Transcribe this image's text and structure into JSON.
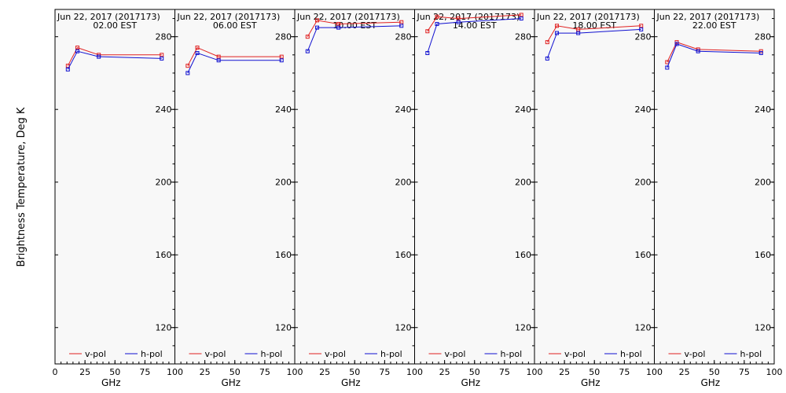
{
  "figure": {
    "ylabel": "Brightness Temperature, Deg K",
    "background": "#f8f8f8",
    "vpol_color": "#e02020",
    "hpol_color": "#1010d0"
  },
  "chart_data": [
    {
      "type": "line",
      "title_date": "Jun 22, 2017 (2017173)",
      "title_time": "02.00 EST",
      "xlabel": "GHz",
      "xlim": [
        0,
        100
      ],
      "ylim": [
        100,
        295
      ],
      "x_ticks": [
        "0",
        "25",
        "50",
        "75",
        "100"
      ],
      "y_ticks": [
        "120",
        "160",
        "200",
        "240",
        "280"
      ],
      "x": [
        10.7,
        18.7,
        36.5,
        89
      ],
      "series": [
        {
          "name": "v-pol",
          "values": [
            264,
            274,
            270,
            270
          ]
        },
        {
          "name": "h-pol",
          "values": [
            262,
            272,
            269,
            268
          ]
        }
      ]
    },
    {
      "type": "line",
      "title_date": "Jun 22, 2017 (2017173)",
      "title_time": "06.00 EST",
      "xlabel": "GHz",
      "xlim": [
        0,
        100
      ],
      "ylim": [
        100,
        295
      ],
      "x_ticks": [
        "0",
        "25",
        "50",
        "75",
        "100"
      ],
      "y_ticks": [
        "120",
        "160",
        "200",
        "240",
        "280"
      ],
      "x": [
        10.7,
        18.7,
        36.5,
        89
      ],
      "series": [
        {
          "name": "v-pol",
          "values": [
            264,
            274,
            269,
            269
          ]
        },
        {
          "name": "h-pol",
          "values": [
            260,
            271,
            267,
            267
          ]
        }
      ]
    },
    {
      "type": "line",
      "title_date": "Jun 22, 2017 (2017173)",
      "title_time": "10.00 EST",
      "xlabel": "GHz",
      "xlim": [
        0,
        100
      ],
      "ylim": [
        100,
        295
      ],
      "x_ticks": [
        "0",
        "25",
        "50",
        "75",
        "100"
      ],
      "y_ticks": [
        "120",
        "160",
        "200",
        "240",
        "280"
      ],
      "x": [
        10.7,
        18.7,
        36.5,
        89
      ],
      "series": [
        {
          "name": "v-pol",
          "values": [
            280,
            289,
            287,
            288
          ]
        },
        {
          "name": "h-pol",
          "values": [
            272,
            285,
            285,
            286
          ]
        }
      ]
    },
    {
      "type": "line",
      "title_date": "Jun 22, 2017 (2017173)",
      "title_time": "14.00 EST",
      "xlabel": "GHz",
      "xlim": [
        0,
        100
      ],
      "ylim": [
        100,
        295
      ],
      "x_ticks": [
        "0",
        "25",
        "50",
        "75",
        "100"
      ],
      "y_ticks": [
        "120",
        "160",
        "200",
        "240",
        "280"
      ],
      "x": [
        10.7,
        18.7,
        36.5,
        89
      ],
      "series": [
        {
          "name": "v-pol",
          "values": [
            283,
            291,
            290,
            292
          ]
        },
        {
          "name": "h-pol",
          "values": [
            271,
            287,
            288,
            290
          ]
        }
      ]
    },
    {
      "type": "line",
      "title_date": "Jun 22, 2017 (2017173)",
      "title_time": "18.00 EST",
      "xlabel": "GHz",
      "xlim": [
        0,
        100
      ],
      "ylim": [
        100,
        295
      ],
      "x_ticks": [
        "0",
        "25",
        "50",
        "75",
        "100"
      ],
      "y_ticks": [
        "120",
        "160",
        "200",
        "240",
        "280"
      ],
      "x": [
        10.7,
        18.7,
        36.5,
        89
      ],
      "series": [
        {
          "name": "v-pol",
          "values": [
            277,
            286,
            284,
            286
          ]
        },
        {
          "name": "h-pol",
          "values": [
            268,
            282,
            282,
            284
          ]
        }
      ]
    },
    {
      "type": "line",
      "title_date": "Jun 22, 2017 (2017173)",
      "title_time": "22.00 EST",
      "xlabel": "GHz",
      "xlim": [
        0,
        100
      ],
      "ylim": [
        100,
        295
      ],
      "x_ticks": [
        "0",
        "25",
        "50",
        "75",
        "100"
      ],
      "y_ticks": [
        "120",
        "160",
        "200",
        "240",
        "280"
      ],
      "x": [
        10.7,
        18.7,
        36.5,
        89
      ],
      "series": [
        {
          "name": "v-pol",
          "values": [
            266,
            277,
            273,
            272
          ]
        },
        {
          "name": "h-pol",
          "values": [
            263,
            276,
            272,
            271
          ]
        }
      ]
    }
  ]
}
